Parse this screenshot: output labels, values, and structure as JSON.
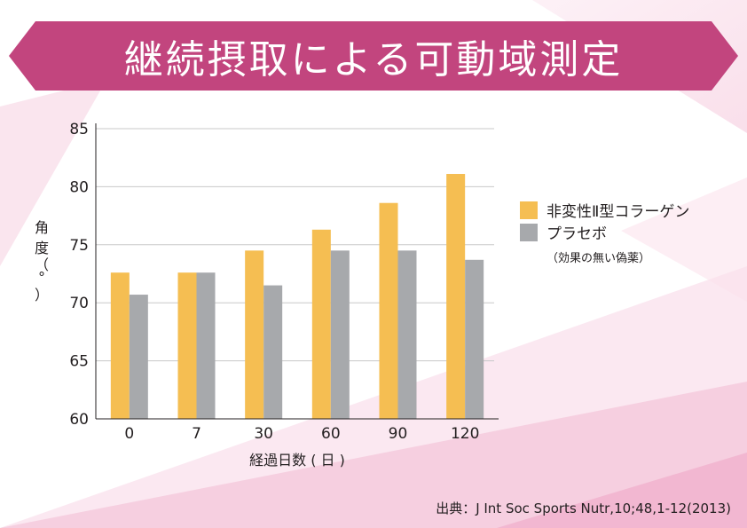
{
  "title": "継続摂取による可動域測定",
  "chart_data": {
    "type": "bar",
    "categories": [
      "0",
      "7",
      "30",
      "60",
      "90",
      "120"
    ],
    "series": [
      {
        "name": "非変性Ⅱ型コラーゲン",
        "color": "#f5be52",
        "values": [
          72.6,
          72.6,
          74.5,
          76.3,
          78.6,
          81.1
        ]
      },
      {
        "name": "プラセボ",
        "sub": "（効果の無い偽薬）",
        "color": "#a7a9ac",
        "values": [
          70.7,
          72.6,
          71.5,
          74.5,
          74.5,
          73.7
        ]
      }
    ],
    "ylim": [
      60,
      85
    ],
    "yticks": [
      60,
      65,
      70,
      75,
      80,
      85
    ],
    "ylabel_chars": [
      "角",
      "度",
      "（",
      "°",
      "）"
    ],
    "xlabel": "経過日数 ( 日 )",
    "grid": true,
    "legend_position": "right"
  },
  "source": "出典：J Int Soc Sports Nutr,10;48,1-12(2013)",
  "colors": {
    "banner": "#c2457e",
    "grid": "#c8c8c8",
    "axis": "#231f20"
  }
}
